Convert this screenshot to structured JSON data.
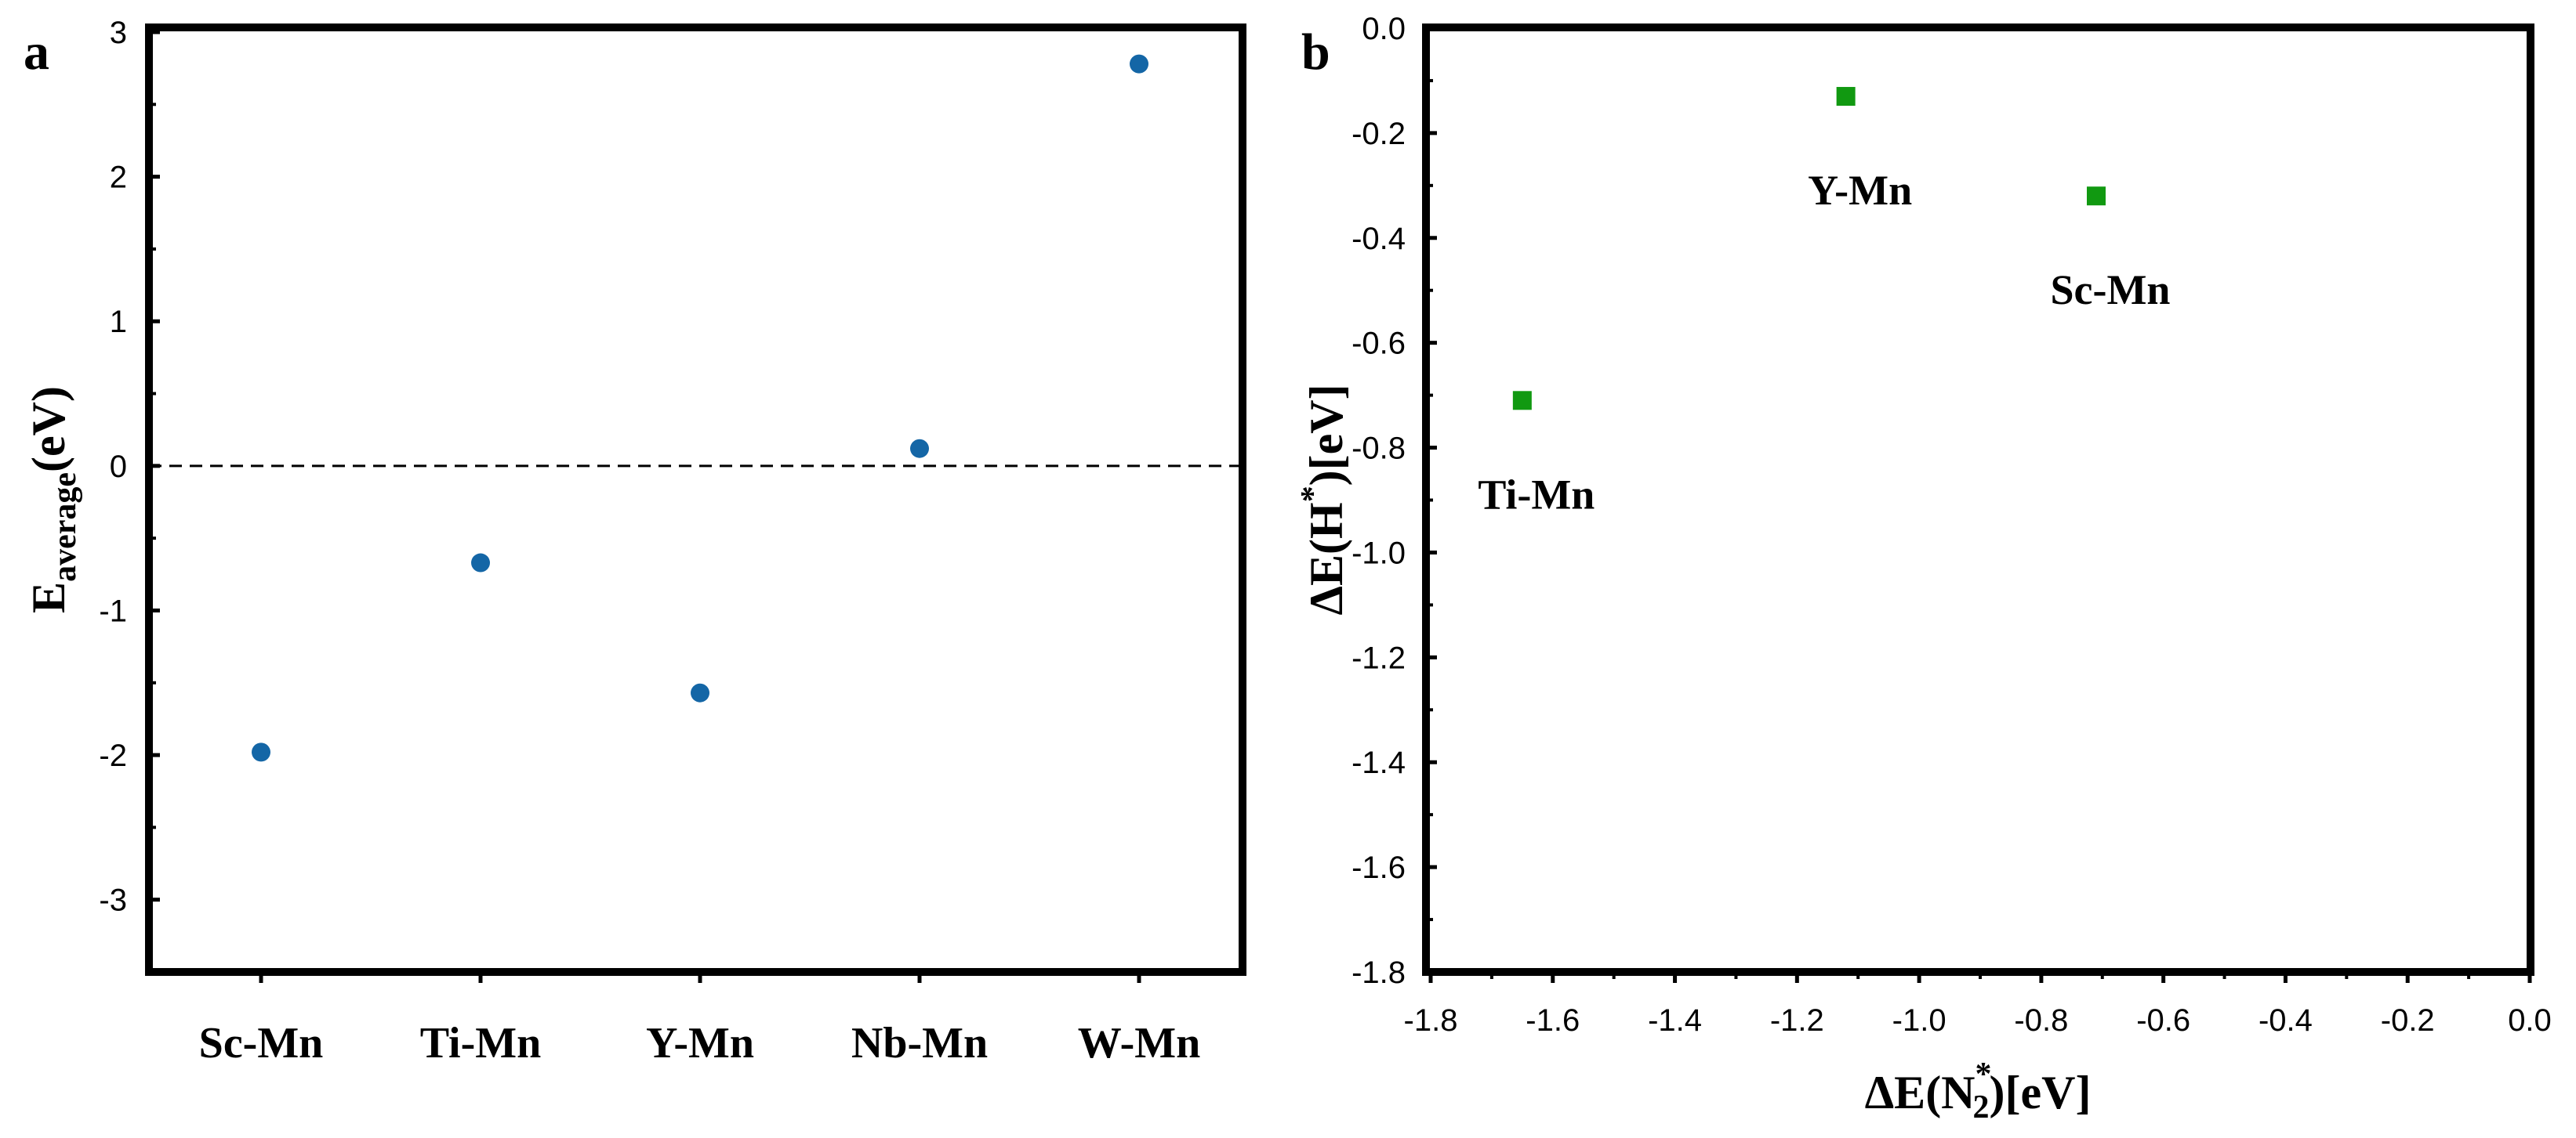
{
  "chart_data": [
    {
      "panel": "a",
      "type": "scatter",
      "categories": [
        "Sc-Mn",
        "Ti-Mn",
        "Y-Mn",
        "Nb-Mn",
        "W-Mn"
      ],
      "values": [
        -1.98,
        -0.67,
        -1.57,
        0.12,
        2.78
      ],
      "ylabel_main": "E",
      "ylabel_sub": "average",
      "ylabel_unit": "(eV)",
      "ylim": [
        -3.5,
        3
      ],
      "yticks": [
        "-3",
        "-2",
        "-1",
        "0",
        "1",
        "2",
        "3"
      ],
      "reference_line": 0,
      "color": "#1466a6"
    },
    {
      "panel": "b",
      "type": "scatter",
      "points": [
        {
          "label": "Ti-Mn",
          "x": -1.65,
          "y": -0.71
        },
        {
          "label": "Y-Mn",
          "x": -1.12,
          "y": -0.13
        },
        {
          "label": "Sc-Mn",
          "x": -0.71,
          "y": -0.32
        }
      ],
      "xlabel_main": "ΔE(N",
      "xlabel_sub": "2",
      "xlabel_sup": "*",
      "xlabel_unit": ")[eV]",
      "ylabel_main": "ΔE(H",
      "ylabel_sup": "*",
      "ylabel_unit": ")[eV]",
      "xlim": [
        -1.8,
        0.0
      ],
      "ylim": [
        -1.8,
        0.0
      ],
      "xticks": [
        "-1.8",
        "-1.6",
        "-1.4",
        "-1.2",
        "-1.0",
        "-0.8",
        "-0.6",
        "-0.4",
        "-0.2",
        "0.0"
      ],
      "yticks": [
        "0.0",
        "-0.2",
        "-0.4",
        "-0.6",
        "-0.8",
        "-1.0",
        "-1.2",
        "-1.4",
        "-1.6",
        "-1.8"
      ],
      "color": "#119911"
    }
  ]
}
